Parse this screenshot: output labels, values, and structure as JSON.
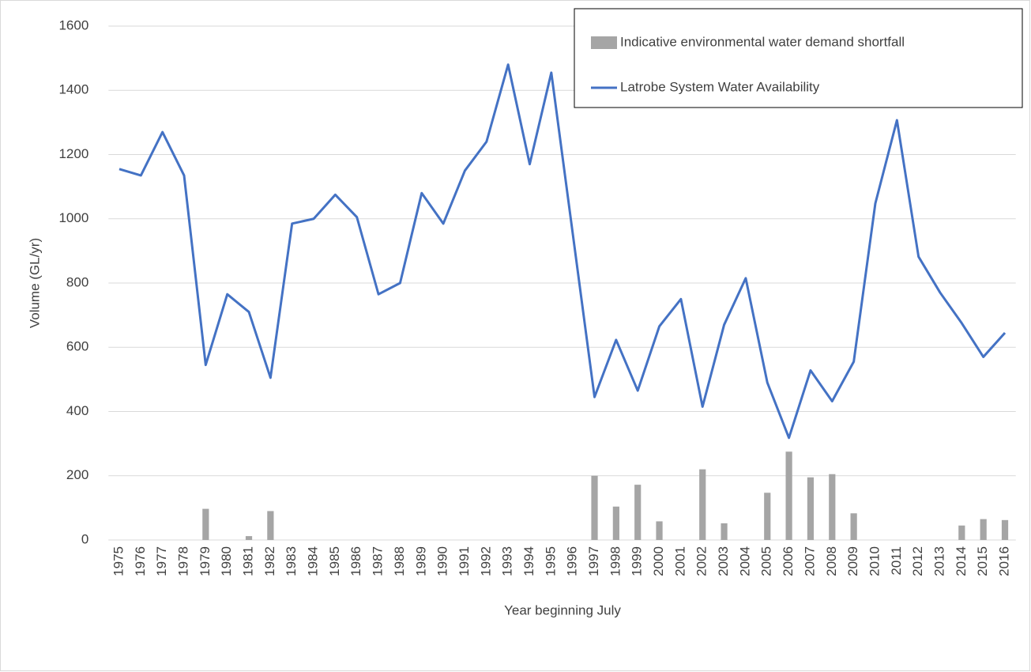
{
  "chart_data": {
    "type": "combo",
    "x_label": "Year beginning July",
    "y_label": "Volume (GL/yr)",
    "categories": [
      "1975",
      "1976",
      "1977",
      "1978",
      "1979",
      "1980",
      "1981",
      "1982",
      "1983",
      "1984",
      "1985",
      "1986",
      "1987",
      "1988",
      "1989",
      "1990",
      "1991",
      "1992",
      "1993",
      "1994",
      "1995",
      "1996",
      "1997",
      "1998",
      "1999",
      "2000",
      "2001",
      "2002",
      "2003",
      "2004",
      "2005",
      "2006",
      "2007",
      "2008",
      "2009",
      "2010",
      "2011",
      "2012",
      "2013",
      "2014",
      "2015",
      "2016"
    ],
    "series": [
      {
        "name": "Indicative environmental water demand shortfall",
        "type": "bar",
        "color": "#a5a5a5",
        "values": [
          null,
          null,
          null,
          null,
          97,
          null,
          12,
          90,
          null,
          null,
          null,
          null,
          null,
          null,
          null,
          null,
          null,
          null,
          null,
          null,
          null,
          null,
          200,
          104,
          172,
          58,
          null,
          220,
          52,
          null,
          147,
          275,
          195,
          205,
          83,
          null,
          null,
          null,
          null,
          45,
          65,
          62
        ]
      },
      {
        "name": "Latrobe System Water Availability",
        "type": "line",
        "color": "#4472c4",
        "values": [
          1155,
          1135,
          1270,
          1135,
          545,
          765,
          710,
          505,
          985,
          1000,
          1075,
          1005,
          765,
          800,
          1080,
          985,
          1150,
          1240,
          1480,
          1170,
          1455,
          950,
          445,
          623,
          465,
          665,
          750,
          415,
          670,
          815,
          490,
          318,
          528,
          432,
          555,
          1048,
          1307,
          882,
          770,
          675,
          570,
          645
        ]
      }
    ],
    "ylim": [
      0,
      1600
    ],
    "yticks": [
      0,
      200,
      400,
      600,
      800,
      1000,
      1200,
      1400,
      1600
    ],
    "grid": true,
    "legend": "upper-right"
  }
}
